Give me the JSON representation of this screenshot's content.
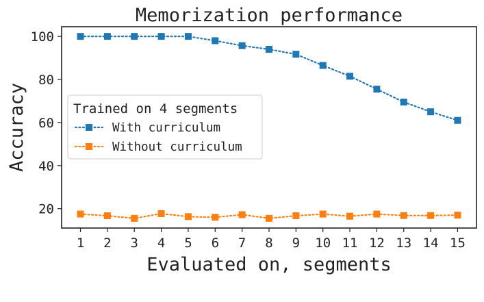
{
  "chart_data": {
    "type": "line",
    "title": "Memorization performance",
    "xlabel": "Evaluated on, segments",
    "ylabel": "Accuracy",
    "x": [
      1,
      2,
      3,
      4,
      5,
      6,
      7,
      8,
      9,
      10,
      11,
      12,
      13,
      14,
      15
    ],
    "x_ticks": [
      "1",
      "2",
      "3",
      "4",
      "5",
      "6",
      "7",
      "8",
      "9",
      "10",
      "11",
      "12",
      "13",
      "14",
      "15"
    ],
    "xlim": [
      0.3,
      15.7
    ],
    "y_ticks": [
      "20",
      "40",
      "60",
      "80",
      "100"
    ],
    "ylim": [
      11,
      104.5
    ],
    "grid": false,
    "legend": {
      "title": "Trained on 4 segments",
      "placement": "center-left"
    },
    "series": [
      {
        "name": "With curriculum",
        "color": "#1f77b4",
        "marker": "square",
        "linestyle": "dotted",
        "values": [
          100,
          100,
          100,
          100,
          100,
          98,
          95.7,
          94,
          91.7,
          86.5,
          81.5,
          75.5,
          69.5,
          65,
          61
        ]
      },
      {
        "name": "Without curriculum",
        "color": "#ff7f0e",
        "marker": "square",
        "linestyle": "dotted",
        "values": [
          17.5,
          16.7,
          15.5,
          17.7,
          16.3,
          16,
          17.2,
          15.5,
          16.7,
          17.5,
          16.5,
          17.5,
          16.8,
          16.8,
          17
        ]
      }
    ]
  }
}
